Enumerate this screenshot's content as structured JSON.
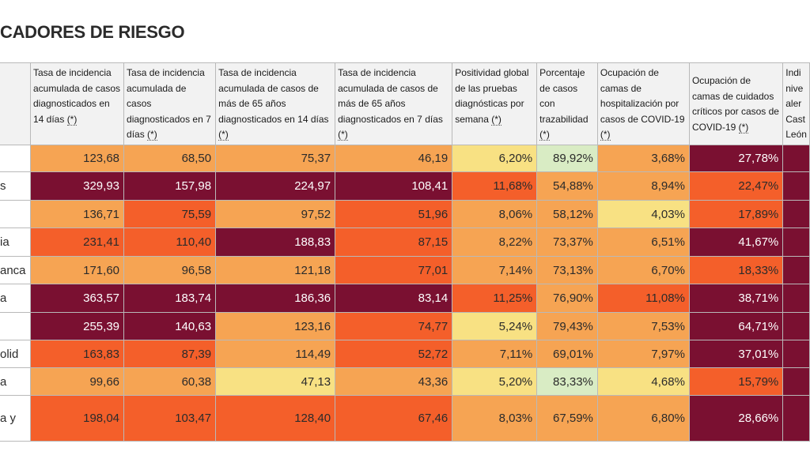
{
  "page": {
    "title": "CADORES DE RIESGO"
  },
  "table": {
    "colors": {
      "low": "#f8e183",
      "medium": "#f6a453",
      "high": "#f45f2a",
      "very_high": "#7a1031",
      "good": "#d9ecc4"
    },
    "headers": [
      {
        "label": "",
        "note": ""
      },
      {
        "label": "Tasa de incidencia acumulada de casos diagnosticados en 14 días ",
        "note": "(*)"
      },
      {
        "label": "Tasa de incidencia acumulada de casos diagnosticados en 7 días ",
        "note": "(*)"
      },
      {
        "label": "Tasa de incidencia acumulada de casos de más de 65 años diagnosticados en 14 días ",
        "note": "(*)"
      },
      {
        "label": "Tasa de incidencia acumulada de casos de más de 65 años diagnosticados en 7 días ",
        "note": "(*)"
      },
      {
        "label": "Positividad global de las pruebas diagnósticas por semana ",
        "note": "(*)"
      },
      {
        "label": "Porcentaje de casos con trazabilidad ",
        "note": "(*)"
      },
      {
        "label": "Ocupación de camas de hospitalización por casos de COVID-19 ",
        "note": "(*)"
      },
      {
        "label": "Ocupación de camas de cuidados críticos por casos de COVID-19 ",
        "note": "(*)"
      },
      {
        "label": "Indi nive aler Cast León",
        "note": ""
      }
    ],
    "rows": [
      {
        "name": "",
        "cells": [
          "123,68",
          "68,50",
          "75,37",
          "46,19",
          "6,20%",
          "89,92%",
          "3,68%",
          "27,78%"
        ],
        "levels": [
          "mid",
          "mid",
          "mid",
          "mid",
          "lo",
          "good",
          "mid",
          "vh"
        ]
      },
      {
        "name": "s",
        "cells": [
          "329,93",
          "157,98",
          "224,97",
          "108,41",
          "11,68%",
          "54,88%",
          "8,94%",
          "22,47%"
        ],
        "levels": [
          "vh",
          "vh",
          "vh",
          "vh",
          "hi",
          "mid",
          "mid",
          "hi"
        ]
      },
      {
        "name": "",
        "cells": [
          "136,71",
          "75,59",
          "97,52",
          "51,96",
          "8,06%",
          "58,12%",
          "4,03%",
          "17,89%"
        ],
        "levels": [
          "mid",
          "hi",
          "mid",
          "hi",
          "mid",
          "mid",
          "lo",
          "hi"
        ]
      },
      {
        "name": "ia",
        "cells": [
          "231,41",
          "110,40",
          "188,83",
          "87,15",
          "8,22%",
          "73,37%",
          "6,51%",
          "41,67%"
        ],
        "levels": [
          "hi",
          "hi",
          "vh",
          "hi",
          "mid",
          "mid",
          "mid",
          "vh"
        ]
      },
      {
        "name": "anca",
        "cells": [
          "171,60",
          "96,58",
          "121,18",
          "77,01",
          "7,14%",
          "73,13%",
          "6,70%",
          "18,33%"
        ],
        "levels": [
          "mid",
          "mid",
          "mid",
          "hi",
          "mid",
          "mid",
          "mid",
          "hi"
        ]
      },
      {
        "name": "a",
        "cells": [
          "363,57",
          "183,74",
          "186,36",
          "83,14",
          "11,25%",
          "76,90%",
          "11,08%",
          "38,71%"
        ],
        "levels": [
          "vh",
          "vh",
          "vh",
          "vh",
          "hi",
          "mid",
          "hi",
          "vh"
        ]
      },
      {
        "name": "",
        "cells": [
          "255,39",
          "140,63",
          "123,16",
          "74,77",
          "5,24%",
          "79,43%",
          "7,53%",
          "64,71%"
        ],
        "levels": [
          "vh",
          "vh",
          "mid",
          "hi",
          "lo",
          "mid",
          "mid",
          "vh"
        ]
      },
      {
        "name": "olid",
        "cells": [
          "163,83",
          "87,39",
          "114,49",
          "52,72",
          "7,11%",
          "69,01%",
          "7,97%",
          "37,01%"
        ],
        "levels": [
          "hi",
          "hi",
          "mid",
          "hi",
          "mid",
          "mid",
          "mid",
          "vh"
        ]
      },
      {
        "name": "a",
        "cells": [
          "99,66",
          "60,38",
          "47,13",
          "43,36",
          "5,20%",
          "83,33%",
          "4,68%",
          "15,79%"
        ],
        "levels": [
          "mid",
          "mid",
          "lo",
          "mid",
          "lo",
          "good",
          "lo",
          "hi"
        ]
      },
      {
        "name": "a y",
        "cells": [
          "198,04",
          "103,47",
          "128,40",
          "67,46",
          "8,03%",
          "67,59%",
          "6,80%",
          "28,66%"
        ],
        "levels": [
          "hi",
          "hi",
          "hi",
          "hi",
          "mid",
          "mid",
          "mid",
          "vh"
        ]
      }
    ]
  }
}
